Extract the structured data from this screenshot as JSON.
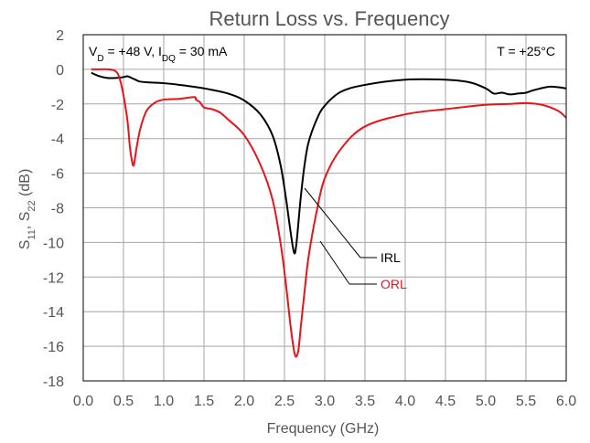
{
  "chart_data": {
    "type": "line",
    "title": "Return Loss vs. Frequency",
    "xlabel": "Frequency (GHz)",
    "ylabel": {
      "s11_base": "S",
      "s11_sub": "11",
      "sep": ", ",
      "s22_base": "S",
      "s22_sub": "22",
      "unit": " (dB)"
    },
    "xlim": [
      0.0,
      6.0
    ],
    "ylim": [
      -18,
      2
    ],
    "xticks": [
      "0.0",
      "0.5",
      "1.0",
      "1.5",
      "2.0",
      "2.5",
      "3.0",
      "3.5",
      "4.0",
      "4.5",
      "5.0",
      "5.5",
      "6.0"
    ],
    "yticks": [
      "2",
      "0",
      "-2",
      "-4",
      "-6",
      "-8",
      "-10",
      "-12",
      "-14",
      "-16",
      "-18"
    ],
    "grid": true,
    "annotations": {
      "conditions_left": {
        "vd_base": "V",
        "vd_sub": "D",
        "vd_text": " = +48 V, I",
        "idq_sub": "DQ",
        "idq_text": " = 30 mA"
      },
      "conditions_right": "T = +25°C"
    },
    "series": [
      {
        "name": "IRL",
        "color": "#000000",
        "x": [
          0.1,
          0.2,
          0.3,
          0.4,
          0.5,
          0.55,
          0.6,
          0.65,
          0.7,
          0.8,
          1.0,
          1.2,
          1.5,
          1.8,
          2.0,
          2.2,
          2.35,
          2.45,
          2.52,
          2.57,
          2.62,
          2.65,
          2.7,
          2.75,
          2.8,
          2.9,
          3.0,
          3.2,
          3.5,
          4.0,
          4.5,
          4.8,
          5.0,
          5.1,
          5.2,
          5.3,
          5.4,
          5.5,
          5.6,
          5.8,
          6.0
        ],
        "y": [
          -0.2,
          -0.4,
          -0.5,
          -0.5,
          -0.45,
          -0.4,
          -0.5,
          -0.6,
          -0.7,
          -0.75,
          -0.8,
          -0.9,
          -1.1,
          -1.4,
          -1.8,
          -2.6,
          -3.8,
          -5.5,
          -7.5,
          -9.2,
          -10.6,
          -10.0,
          -7.5,
          -5.5,
          -4.2,
          -2.9,
          -2.1,
          -1.3,
          -0.9,
          -0.6,
          -0.6,
          -0.75,
          -1.1,
          -1.4,
          -1.35,
          -1.45,
          -1.4,
          -1.35,
          -1.2,
          -1.0,
          -1.1
        ]
      },
      {
        "name": "ORL",
        "color": "#e8141c",
        "x": [
          0.1,
          0.2,
          0.3,
          0.4,
          0.45,
          0.5,
          0.55,
          0.58,
          0.61,
          0.63,
          0.66,
          0.7,
          0.75,
          0.8,
          0.9,
          1.0,
          1.2,
          1.38,
          1.4,
          1.45,
          1.5,
          1.6,
          1.7,
          1.8,
          2.0,
          2.2,
          2.35,
          2.45,
          2.52,
          2.58,
          2.63,
          2.67,
          2.7,
          2.75,
          2.8,
          2.9,
          3.0,
          3.2,
          3.5,
          4.0,
          4.5,
          5.0,
          5.3,
          5.5,
          5.7,
          5.9,
          6.0
        ],
        "y": [
          0.0,
          0.0,
          0.0,
          -0.1,
          -0.5,
          -1.5,
          -3.0,
          -4.5,
          -5.4,
          -5.5,
          -4.6,
          -3.6,
          -2.8,
          -2.3,
          -1.9,
          -1.75,
          -1.7,
          -1.6,
          -1.75,
          -1.9,
          -2.2,
          -2.3,
          -2.5,
          -2.9,
          -3.8,
          -5.5,
          -7.5,
          -10.0,
          -12.5,
          -15.0,
          -16.5,
          -16.3,
          -15.0,
          -12.8,
          -10.8,
          -8.2,
          -6.3,
          -4.6,
          -3.3,
          -2.6,
          -2.3,
          -2.05,
          -2.0,
          -1.95,
          -2.05,
          -2.4,
          -2.8
        ]
      }
    ],
    "legend": {
      "position": "center-right",
      "entries": [
        "IRL",
        "ORL"
      ]
    }
  }
}
